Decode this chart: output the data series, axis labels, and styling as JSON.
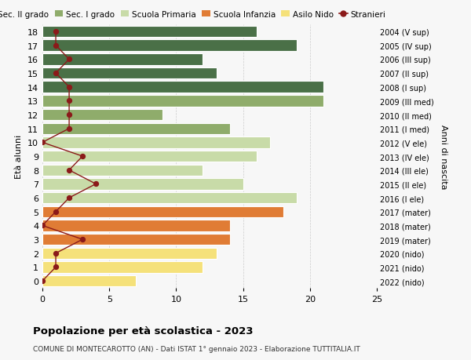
{
  "ages": [
    0,
    1,
    2,
    3,
    4,
    5,
    6,
    7,
    8,
    9,
    10,
    11,
    12,
    13,
    14,
    15,
    16,
    17,
    18
  ],
  "bar_values": [
    7,
    12,
    13,
    14,
    14,
    18,
    19,
    15,
    12,
    16,
    17,
    14,
    9,
    21,
    21,
    13,
    12,
    19,
    16
  ],
  "bar_colors": [
    "#f5e17a",
    "#f5e17a",
    "#f5e17a",
    "#e07c35",
    "#e07c35",
    "#e07c35",
    "#c8dba8",
    "#c8dba8",
    "#c8dba8",
    "#c8dba8",
    "#c8dba8",
    "#8fac6b",
    "#8fac6b",
    "#8fac6b",
    "#4a7047",
    "#4a7047",
    "#4a7047",
    "#4a7047",
    "#4a7047"
  ],
  "stranieri_values": [
    0,
    1,
    1,
    3,
    0,
    1,
    2,
    4,
    2,
    3,
    0,
    2,
    2,
    2,
    2,
    1,
    2,
    1,
    1
  ],
  "right_labels": [
    "2022 (nido)",
    "2021 (nido)",
    "2020 (nido)",
    "2019 (mater)",
    "2018 (mater)",
    "2017 (mater)",
    "2016 (I ele)",
    "2015 (II ele)",
    "2014 (III ele)",
    "2013 (IV ele)",
    "2012 (V ele)",
    "2011 (I med)",
    "2010 (II med)",
    "2009 (III med)",
    "2008 (I sup)",
    "2007 (II sup)",
    "2006 (III sup)",
    "2005 (IV sup)",
    "2004 (V sup)"
  ],
  "legend_labels": [
    "Sec. II grado",
    "Sec. I grado",
    "Scuola Primaria",
    "Scuola Infanzia",
    "Asilo Nido",
    "Stranieri"
  ],
  "legend_colors": [
    "#4a7047",
    "#8fac6b",
    "#c8dba8",
    "#e07c35",
    "#f5e17a",
    "#8b1a1a"
  ],
  "ylabel": "Età alunni",
  "right_axis_label": "Anni di nascita",
  "title": "Popolazione per età scolastica - 2023",
  "subtitle": "COMUNE DI MONTECAROTTO (AN) - Dati ISTAT 1° gennaio 2023 - Elaborazione TUTTITALIA.IT",
  "xlim": [
    0,
    25
  ],
  "xticks": [
    0,
    5,
    10,
    15,
    20,
    25
  ],
  "bg_color": "#f7f7f7"
}
